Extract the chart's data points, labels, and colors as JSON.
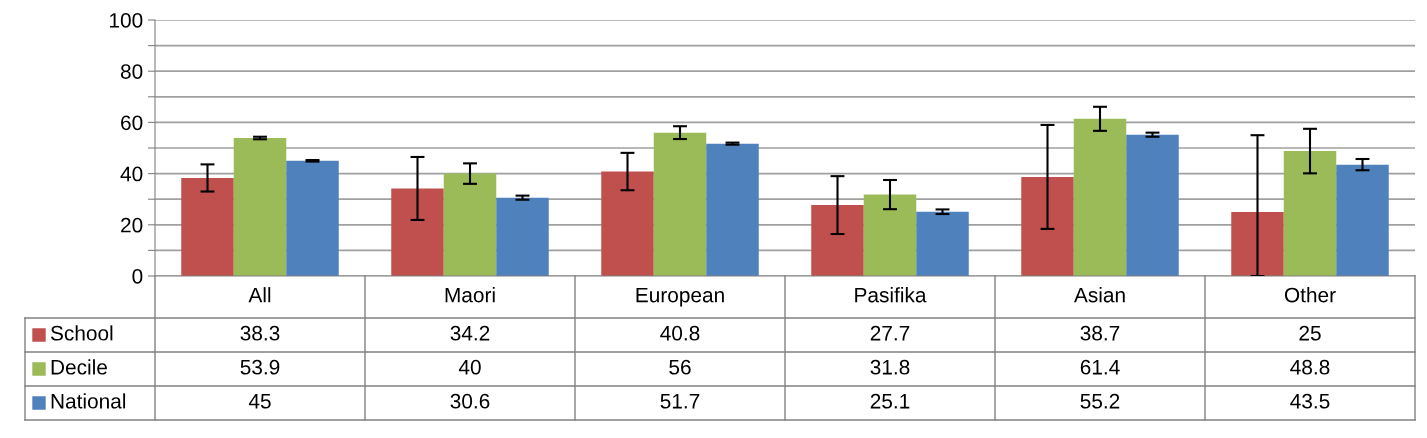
{
  "chart_data": {
    "type": "bar",
    "categories": [
      "All",
      "Maori",
      "European",
      "Pasifika",
      "Asian",
      "Other"
    ],
    "series": [
      {
        "name": "School",
        "color": "#c0504d",
        "values": [
          38.3,
          34.2,
          40.8,
          27.7,
          38.7,
          25
        ],
        "errors": [
          5.3,
          12.3,
          7.3,
          11.3,
          20.3,
          [
            0,
            55
          ]
        ]
      },
      {
        "name": "Decile",
        "color": "#9bbb59",
        "values": [
          53.9,
          40,
          56,
          31.8,
          61.4,
          48.8
        ],
        "errors": [
          0.5,
          4,
          2.5,
          5.7,
          4.7,
          8.7
        ]
      },
      {
        "name": "National",
        "color": "#4f81bd",
        "values": [
          45,
          30.6,
          51.7,
          25.1,
          55.2,
          43.5
        ],
        "errors": [
          0.3,
          0.8,
          0.4,
          0.9,
          0.8,
          2.2
        ]
      }
    ],
    "ylim": [
      0,
      100
    ],
    "yticks": [
      0,
      {
        "value": 10,
        "label": null
      },
      20,
      {
        "value": 30,
        "label": null
      },
      40,
      {
        "value": 50,
        "label": null
      },
      60,
      {
        "value": 70,
        "label": null
      },
      80,
      {
        "value": 90,
        "label": null
      },
      100
    ],
    "grid": "y",
    "legend": "bottom",
    "data_labels": true
  }
}
